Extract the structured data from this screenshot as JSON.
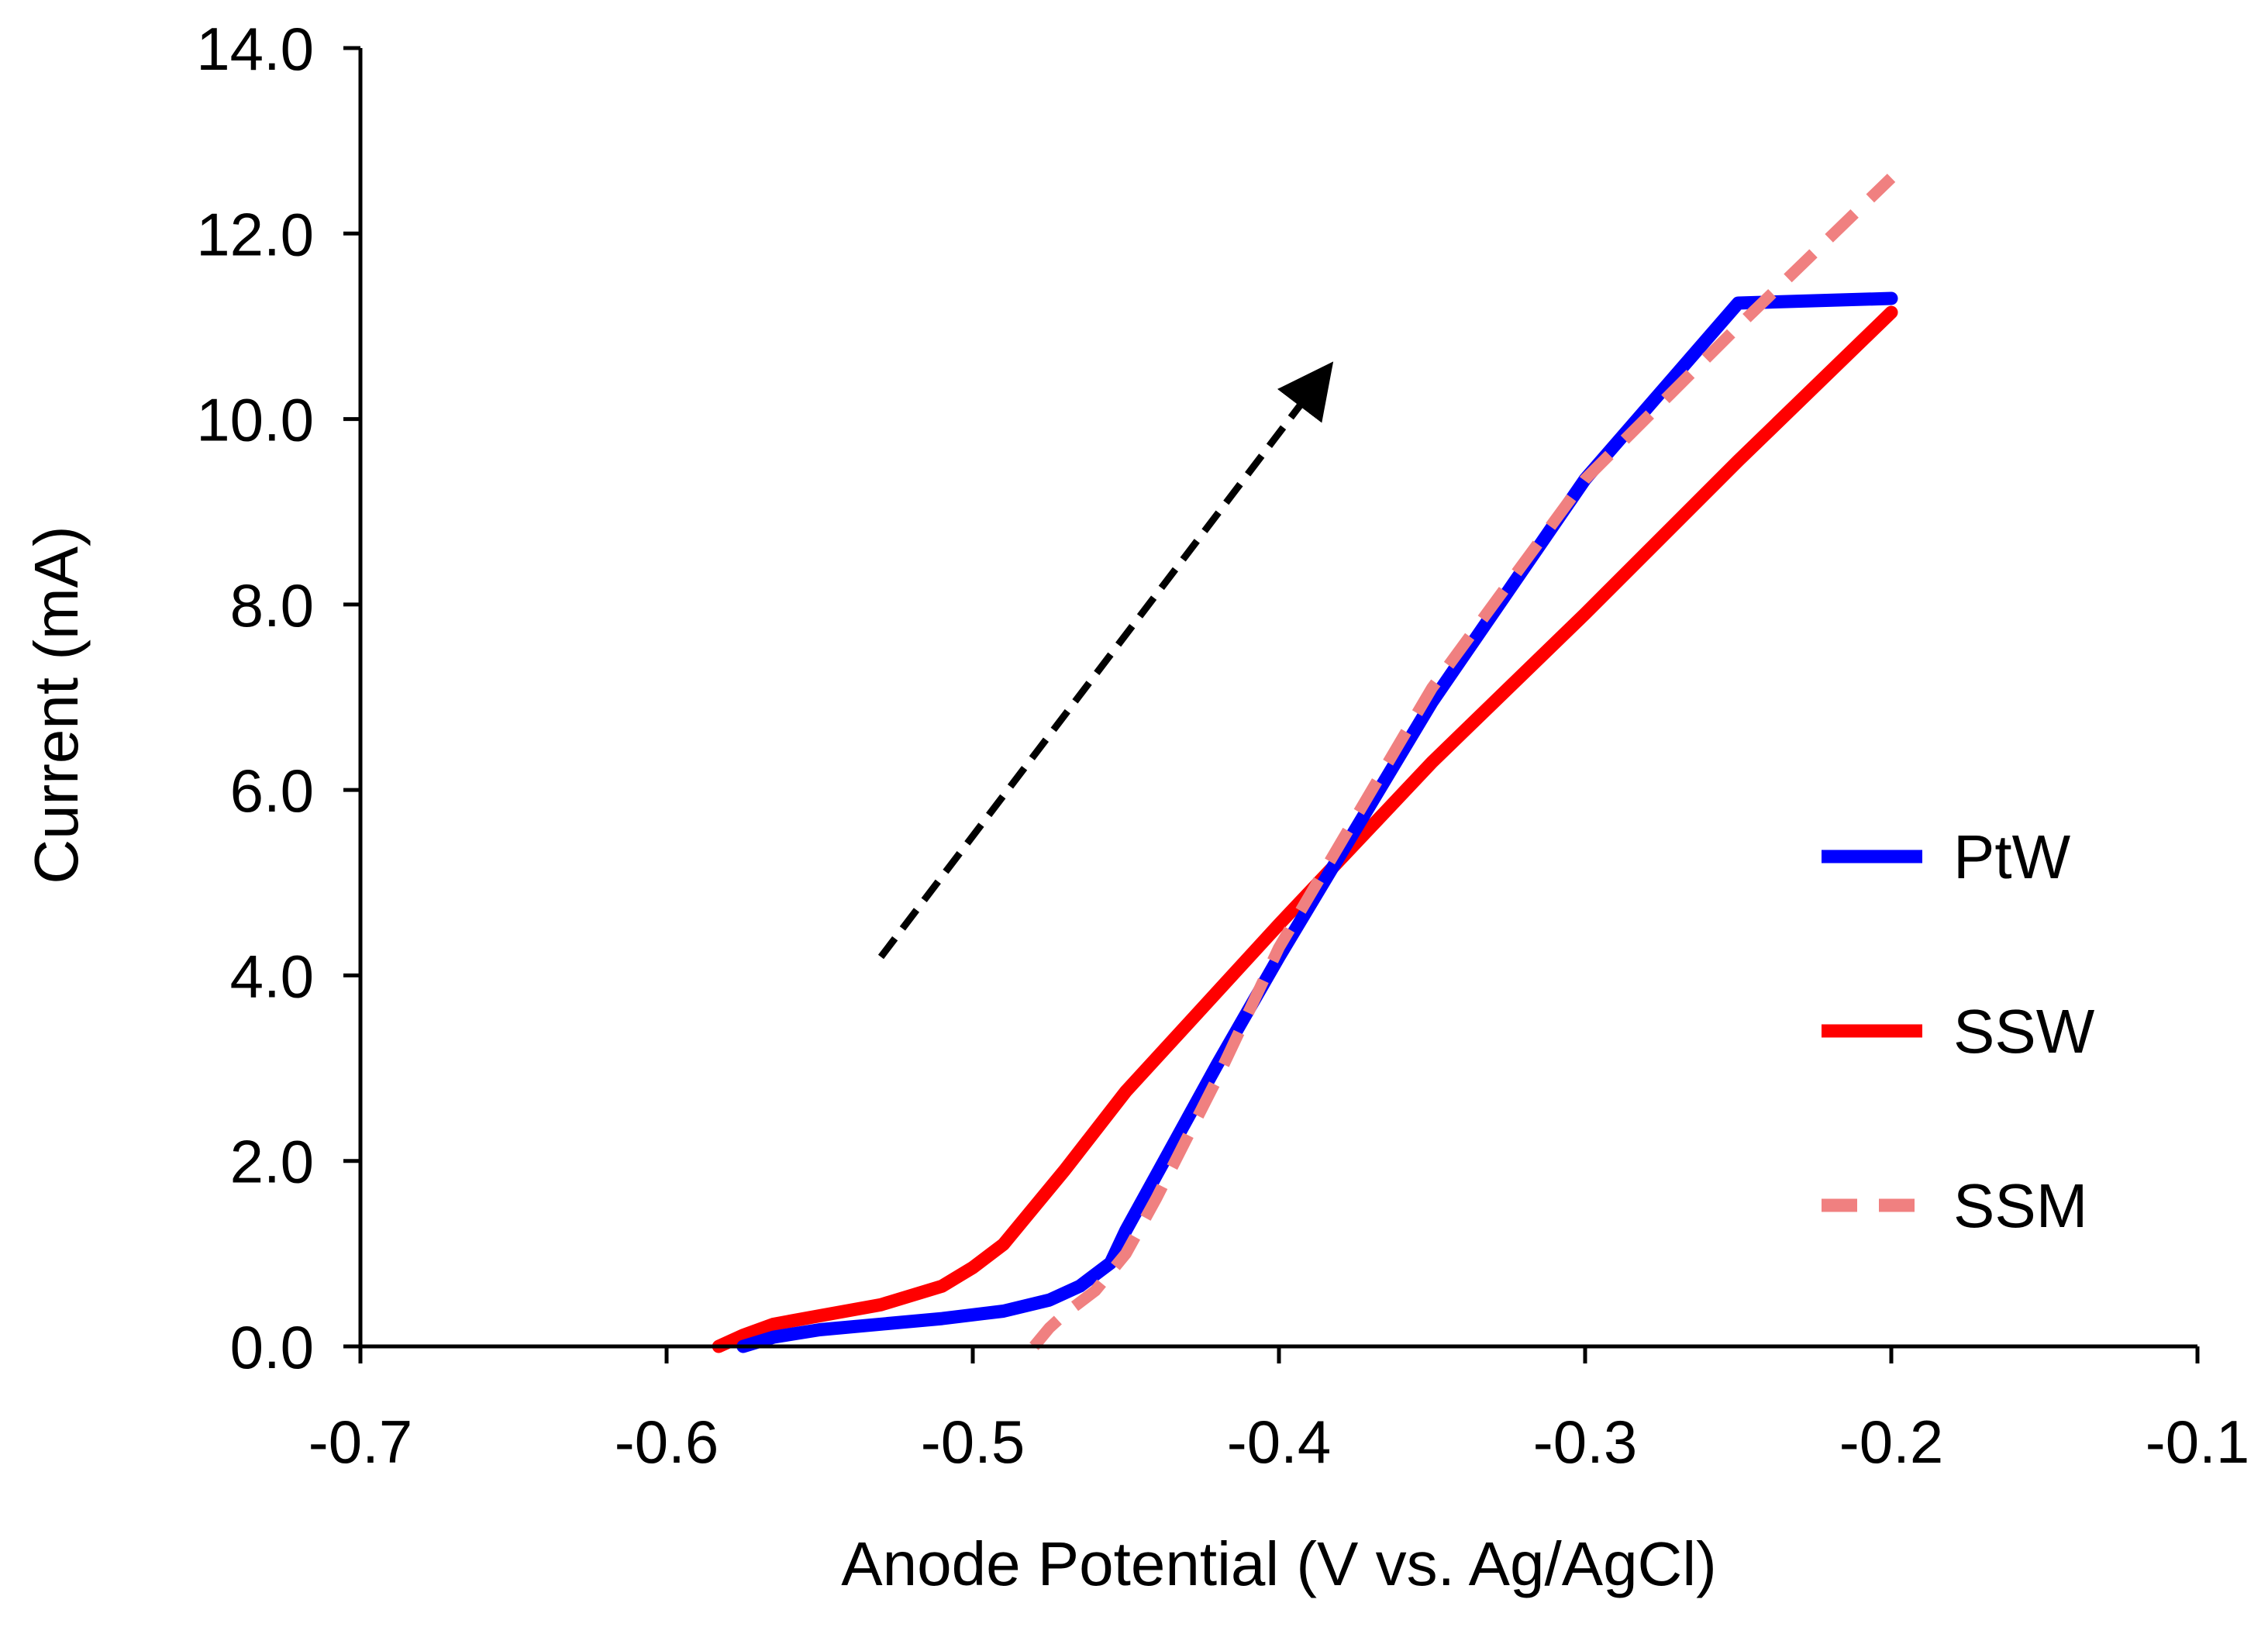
{
  "chart_data": {
    "type": "line",
    "title": "",
    "xlabel": "Anode Potential (V vs. Ag/AgCl)",
    "ylabel": "Current (mA)",
    "xlim": [
      -0.7,
      -0.1
    ],
    "ylim": [
      0,
      14
    ],
    "x_ticks": [
      -0.7,
      -0.6,
      -0.5,
      -0.4,
      -0.3,
      -0.2,
      -0.1
    ],
    "x_tick_labels": [
      "-0.7",
      "-0.6",
      "-0.5",
      "-0.4",
      "-0.3",
      "-0.2",
      "-0.1"
    ],
    "y_ticks": [
      0,
      2,
      4,
      6,
      8,
      10,
      12,
      14
    ],
    "y_tick_labels": [
      "0.0",
      "2.0",
      "4.0",
      "6.0",
      "8.0",
      "10.0",
      "12.0",
      "14.0"
    ],
    "grid": false,
    "legend_position": "right",
    "series": [
      {
        "name": "PtW",
        "color": "#0000ff",
        "style": "solid",
        "x": [
          -0.575,
          -0.565,
          -0.55,
          -0.53,
          -0.51,
          -0.49,
          -0.475,
          -0.465,
          -0.455,
          -0.45,
          -0.44,
          -0.42,
          -0.4,
          -0.35,
          -0.3,
          -0.25,
          -0.2
        ],
        "y": [
          0.0,
          0.1,
          0.18,
          0.24,
          0.3,
          0.38,
          0.5,
          0.65,
          0.9,
          1.25,
          1.85,
          3.05,
          4.2,
          6.95,
          9.35,
          11.25,
          11.3
        ]
      },
      {
        "name": "SSW",
        "color": "#ff0000",
        "style": "solid",
        "x": [
          -0.583,
          -0.575,
          -0.565,
          -0.55,
          -0.53,
          -0.51,
          -0.5,
          -0.49,
          -0.48,
          -0.47,
          -0.45,
          -0.4,
          -0.35,
          -0.3,
          -0.25,
          -0.2
        ],
        "y": [
          0.0,
          0.12,
          0.24,
          0.33,
          0.45,
          0.65,
          0.85,
          1.1,
          1.5,
          1.9,
          2.75,
          4.55,
          6.3,
          7.9,
          9.55,
          11.15
        ]
      },
      {
        "name": "SSM",
        "color": "#f08080",
        "style": "dashed",
        "x": [
          -0.48,
          -0.475,
          -0.47,
          -0.46,
          -0.45,
          -0.44,
          -0.42,
          -0.4,
          -0.35,
          -0.3,
          -0.25,
          -0.2
        ],
        "y": [
          0.0,
          0.2,
          0.35,
          0.6,
          1.0,
          1.6,
          2.9,
          4.3,
          7.1,
          9.35,
          11.0,
          12.6
        ]
      }
    ],
    "annotations": [
      {
        "type": "arrow",
        "style": "dashed",
        "color": "#000000",
        "from": [
          -0.53,
          4.2
        ],
        "to": [
          -0.385,
          10.5
        ]
      }
    ]
  }
}
